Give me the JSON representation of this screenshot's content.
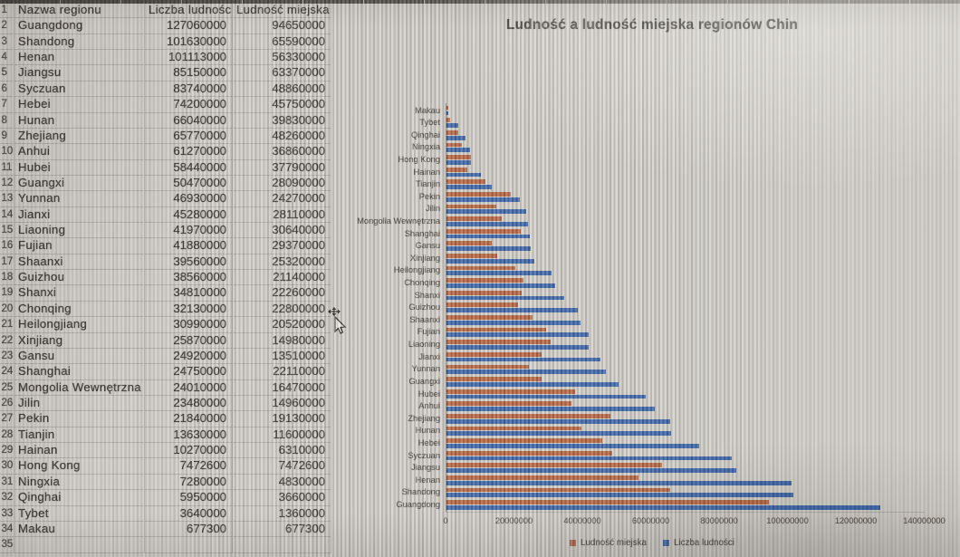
{
  "sheet": {
    "header_row_number": "1",
    "columns": [
      "Nazwa regionu",
      "Liczba ludności",
      "Ludność miejska"
    ],
    "rows": [
      {
        "n": "2",
        "name": "Guangdong",
        "pop": "127060000",
        "urban": "94650000"
      },
      {
        "n": "3",
        "name": "Shandong",
        "pop": "101630000",
        "urban": "65590000"
      },
      {
        "n": "4",
        "name": "Henan",
        "pop": "101113000",
        "urban": "56330000"
      },
      {
        "n": "5",
        "name": "Jiangsu",
        "pop": "85150000",
        "urban": "63370000"
      },
      {
        "n": "6",
        "name": "Syczuan",
        "pop": "83740000",
        "urban": "48860000"
      },
      {
        "n": "7",
        "name": "Hebei",
        "pop": "74200000",
        "urban": "45750000"
      },
      {
        "n": "8",
        "name": "Hunan",
        "pop": "66040000",
        "urban": "39830000"
      },
      {
        "n": "9",
        "name": "Zhejiang",
        "pop": "65770000",
        "urban": "48260000"
      },
      {
        "n": "10",
        "name": "Anhui",
        "pop": "61270000",
        "urban": "36860000"
      },
      {
        "n": "11",
        "name": "Hubei",
        "pop": "58440000",
        "urban": "37790000"
      },
      {
        "n": "12",
        "name": "Guangxi",
        "pop": "50470000",
        "urban": "28090000"
      },
      {
        "n": "13",
        "name": "Yunnan",
        "pop": "46930000",
        "urban": "24270000"
      },
      {
        "n": "14",
        "name": "Jianxi",
        "pop": "45280000",
        "urban": "28110000"
      },
      {
        "n": "15",
        "name": "Liaoning",
        "pop": "41970000",
        "urban": "30640000"
      },
      {
        "n": "16",
        "name": "Fujian",
        "pop": "41880000",
        "urban": "29370000"
      },
      {
        "n": "17",
        "name": "Shaanxi",
        "pop": "39560000",
        "urban": "25320000"
      },
      {
        "n": "18",
        "name": "Guizhou",
        "pop": "38560000",
        "urban": "21140000"
      },
      {
        "n": "19",
        "name": "Shanxi",
        "pop": "34810000",
        "urban": "22260000"
      },
      {
        "n": "20",
        "name": "Chonqing",
        "pop": "32130000",
        "urban": "22800000"
      },
      {
        "n": "21",
        "name": "Heilongjiang",
        "pop": "30990000",
        "urban": "20520000"
      },
      {
        "n": "22",
        "name": "Xinjiang",
        "pop": "25870000",
        "urban": "14980000"
      },
      {
        "n": "23",
        "name": "Gansu",
        "pop": "24920000",
        "urban": "13510000"
      },
      {
        "n": "24",
        "name": "Shanghai",
        "pop": "24750000",
        "urban": "22110000"
      },
      {
        "n": "25",
        "name": "Mongolia Wewnętrzna",
        "pop": "24010000",
        "urban": "16470000"
      },
      {
        "n": "26",
        "name": "Jilin",
        "pop": "23480000",
        "urban": "14960000"
      },
      {
        "n": "27",
        "name": "Pekin",
        "pop": "21840000",
        "urban": "19130000"
      },
      {
        "n": "28",
        "name": "Tianjin",
        "pop": "13630000",
        "urban": "11600000"
      },
      {
        "n": "29",
        "name": "Hainan",
        "pop": "10270000",
        "urban": "6310000"
      },
      {
        "n": "30",
        "name": "Hong Kong",
        "pop": "7472600",
        "urban": "7472600"
      },
      {
        "n": "31",
        "name": "Ningxia",
        "pop": "7280000",
        "urban": "4830000"
      },
      {
        "n": "32",
        "name": "Qinghai",
        "pop": "5950000",
        "urban": "3660000"
      },
      {
        "n": "33",
        "name": "Tybet",
        "pop": "3640000",
        "urban": "1360000"
      },
      {
        "n": "34",
        "name": "Makau",
        "pop": "677300",
        "urban": "677300"
      }
    ],
    "last_empty_row_number": "35"
  },
  "chart_data": {
    "type": "bar",
    "orientation": "horizontal",
    "title": "Ludność a ludność miejska regionów Chin",
    "categories": [
      "Makau",
      "Tybet",
      "Qinghai",
      "Ningxia",
      "Hong Kong",
      "Hainan",
      "Tianjin",
      "Pekin",
      "Jilin",
      "Mongolia Wewnętrzna",
      "Shanghai",
      "Gansu",
      "Xinjiang",
      "Heilongjiang",
      "Chonqing",
      "Shanxi",
      "Guizhou",
      "Shaanxi",
      "Fujian",
      "Liaoning",
      "Jianxi",
      "Yunnan",
      "Guangxi",
      "Hubei",
      "Anhui",
      "Zhejiang",
      "Hunan",
      "Hebei",
      "Syczuan",
      "Jiangsu",
      "Henan",
      "Shandong",
      "Guangdong"
    ],
    "series": [
      {
        "name": "Ludność miejska",
        "color": "#b45932",
        "values": [
          677300,
          1360000,
          3660000,
          4830000,
          7472600,
          6310000,
          11600000,
          19130000,
          14960000,
          16470000,
          22110000,
          13510000,
          14980000,
          20520000,
          22800000,
          22260000,
          21140000,
          25320000,
          29370000,
          30640000,
          28110000,
          24270000,
          28090000,
          37790000,
          36860000,
          48260000,
          39830000,
          45750000,
          48860000,
          63370000,
          56330000,
          65590000,
          94650000
        ]
      },
      {
        "name": "Liczba ludności",
        "color": "#2d5aa5",
        "values": [
          677300,
          3640000,
          5950000,
          7280000,
          7472600,
          10270000,
          13630000,
          21840000,
          23480000,
          24010000,
          24750000,
          24920000,
          25870000,
          30990000,
          32130000,
          34810000,
          38560000,
          39560000,
          41880000,
          41970000,
          45280000,
          46930000,
          50470000,
          58440000,
          61270000,
          65770000,
          66040000,
          74200000,
          83740000,
          85150000,
          101113000,
          101630000,
          127060000
        ]
      }
    ],
    "xlim": [
      0,
      140000000
    ],
    "x_ticks": [
      "0",
      "20000000",
      "40000000",
      "60000000",
      "80000000",
      "100000000",
      "120000000",
      "140000000"
    ],
    "legend_position": "bottom",
    "gridlines": false
  },
  "cursor": {
    "type": "move-arrow"
  }
}
